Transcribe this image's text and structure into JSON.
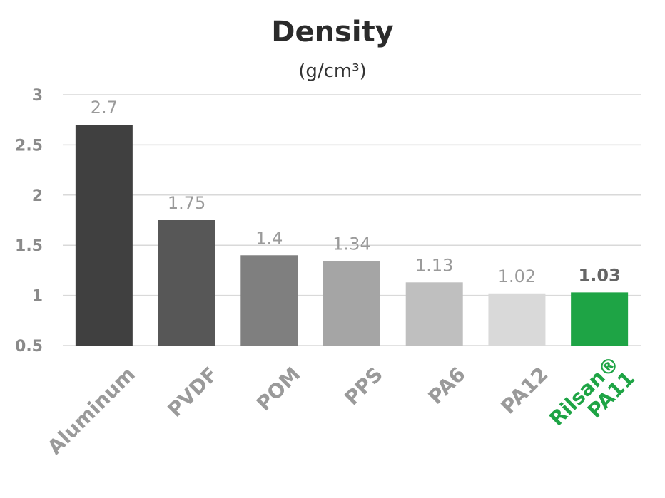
{
  "chart_data": {
    "type": "bar",
    "title": "Density",
    "subtitle": "(g/cm³)",
    "categories": [
      "Aluminum",
      "PVDF",
      "POM",
      "PPS",
      "PA6",
      "PA12",
      "Rilsan® PA11"
    ],
    "category_lines": [
      [
        "Aluminum"
      ],
      [
        "PVDF"
      ],
      [
        "POM"
      ],
      [
        "PPS"
      ],
      [
        "PA6"
      ],
      [
        "PA12"
      ],
      [
        "Rilsan®",
        "PA11"
      ]
    ],
    "values": [
      2.7,
      1.75,
      1.4,
      1.34,
      1.13,
      1.02,
      1.03
    ],
    "data_labels": [
      "2.7",
      "1.75",
      "1.4",
      "1.34",
      "1.13",
      "1.02",
      "1.03"
    ],
    "bar_colors": [
      "#404040",
      "#575757",
      "#7f7f7f",
      "#a5a5a5",
      "#bfbfbf",
      "#d9d9d9",
      "#1ea445"
    ],
    "highlight_index": 6,
    "highlight_color": "#1ea445",
    "ylim": [
      0.5,
      3
    ],
    "yticks": [
      "0.5",
      "1",
      "1.5",
      "2",
      "2.5",
      "3"
    ],
    "xlabel": "",
    "ylabel": "",
    "grid": true,
    "legend": "none"
  }
}
